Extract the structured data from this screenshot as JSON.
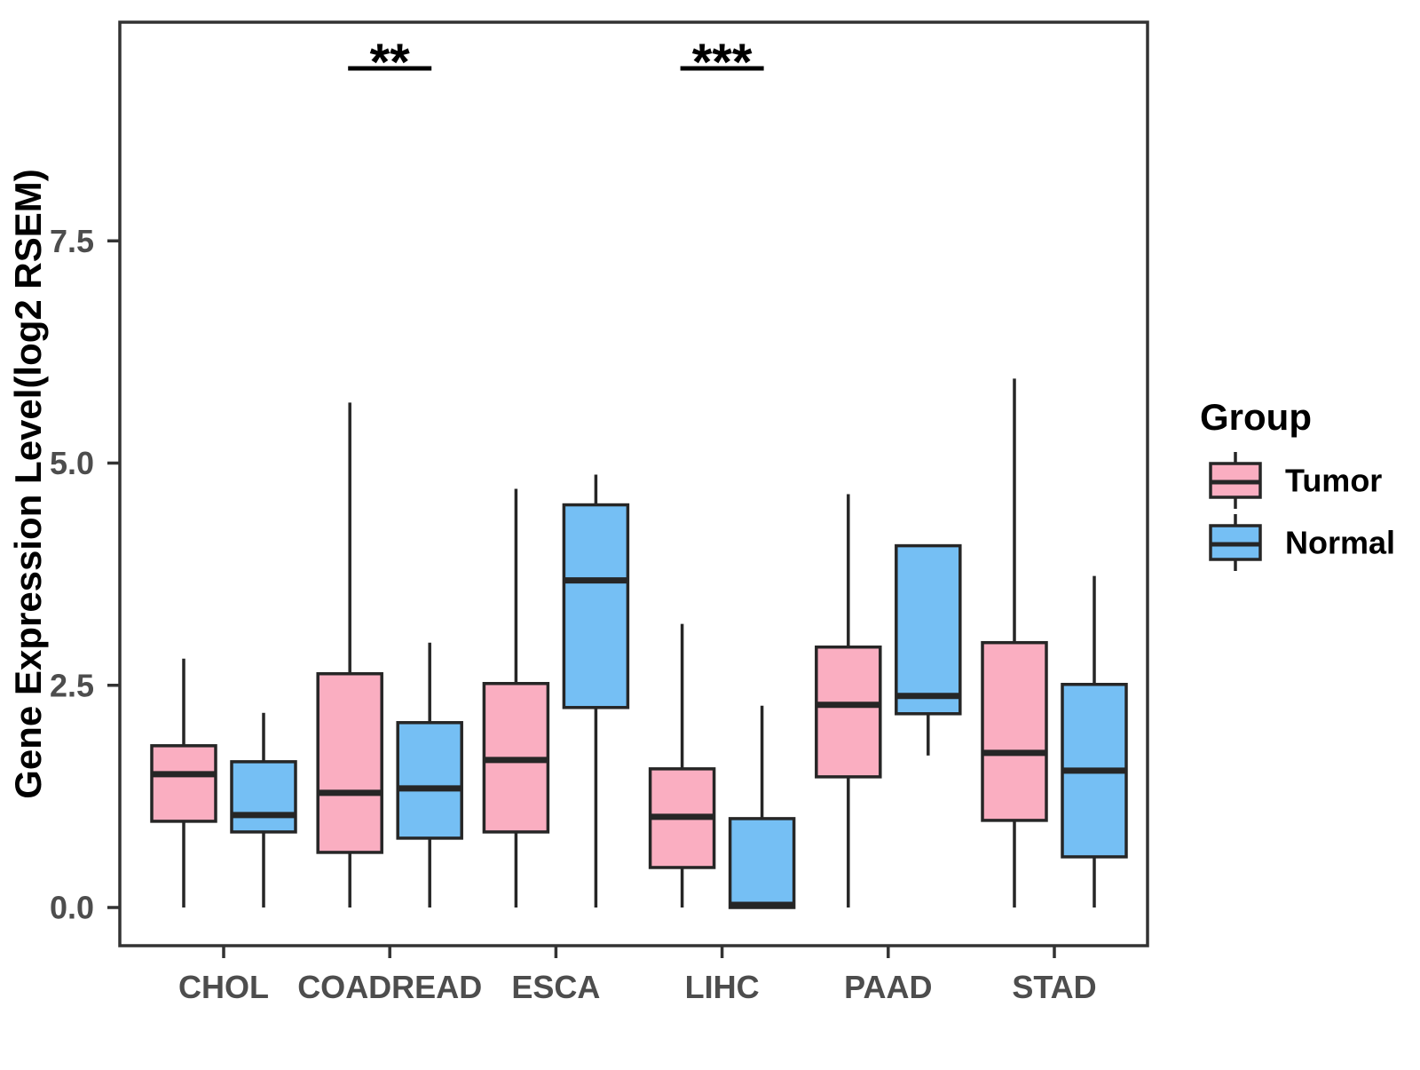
{
  "figure": {
    "background": "#FFFFFF"
  },
  "chart_data": {
    "type": "boxplot",
    "title": "",
    "xlabel": "",
    "ylabel": "Gene Expression Level(log2 RSEM)",
    "categories": [
      "CHOL",
      "COADREAD",
      "ESCA",
      "LIHC",
      "PAAD",
      "STAD"
    ],
    "ylim": [
      -0.4,
      10.0
    ],
    "grid": false,
    "legend_position": "right",
    "y_axis": {
      "title": "Gene Expression Level(log2 RSEM)",
      "ticks": [
        {
          "value": 0.0,
          "label": "0.0"
        },
        {
          "value": 2.5,
          "label": "2.5"
        },
        {
          "value": 5.0,
          "label": "5.0"
        },
        {
          "value": 7.5,
          "label": "7.5"
        }
      ]
    },
    "series": [
      {
        "name": "Tumor",
        "color": "#FAAEC1",
        "data": [
          {
            "category": "CHOL",
            "low": 0.0,
            "q1": 0.97,
            "median": 1.5,
            "q3": 1.82,
            "high": 2.8
          },
          {
            "category": "COADREAD",
            "low": 0.0,
            "q1": 0.62,
            "median": 1.29,
            "q3": 2.63,
            "high": 5.68
          },
          {
            "category": "ESCA",
            "low": 0.0,
            "q1": 0.85,
            "median": 1.66,
            "q3": 2.52,
            "high": 4.71
          },
          {
            "category": "LIHC",
            "low": 0.0,
            "q1": 0.45,
            "median": 1.02,
            "q3": 1.56,
            "high": 3.19
          },
          {
            "category": "PAAD",
            "low": 0.0,
            "q1": 1.47,
            "median": 2.28,
            "q3": 2.93,
            "high": 4.65
          },
          {
            "category": "STAD",
            "low": 0.0,
            "q1": 0.98,
            "median": 1.74,
            "q3": 2.98,
            "high": 5.95
          }
        ]
      },
      {
        "name": "Normal",
        "color": "#75BFF4",
        "data": [
          {
            "category": "CHOL",
            "low": 0.0,
            "q1": 0.85,
            "median": 1.04,
            "q3": 1.64,
            "high": 2.19
          },
          {
            "category": "COADREAD",
            "low": 0.0,
            "q1": 0.78,
            "median": 1.34,
            "q3": 2.08,
            "high": 2.98
          },
          {
            "category": "ESCA",
            "low": 0.0,
            "q1": 2.25,
            "median": 3.68,
            "q3": 4.53,
            "high": 4.87
          },
          {
            "category": "LIHC",
            "low": 0.0,
            "q1": 0.0,
            "median": 0.03,
            "q3": 1.0,
            "high": 2.27
          },
          {
            "category": "PAAD",
            "low": 1.71,
            "q1": 2.18,
            "median": 2.38,
            "q3": 4.07,
            "high": 4.07
          },
          {
            "category": "STAD",
            "low": 0.0,
            "q1": 0.57,
            "median": 1.54,
            "q3": 2.51,
            "high": 3.73
          }
        ]
      }
    ],
    "annotations": [
      {
        "category": "COADREAD",
        "label": "**"
      },
      {
        "category": "LIHC",
        "label": "***"
      }
    ],
    "legend": {
      "title": "Group",
      "entries": [
        {
          "label": "Tumor",
          "color": "#FAAEC1"
        },
        {
          "label": "Normal",
          "color": "#75BFF4"
        }
      ]
    },
    "colors": {
      "box_outline": "#262626",
      "panel_border": "#333333",
      "tick_label": "#4D4D4D",
      "axis_title": "#000000",
      "annotation": "#000000",
      "panel_background": "#FFFFFF"
    }
  }
}
